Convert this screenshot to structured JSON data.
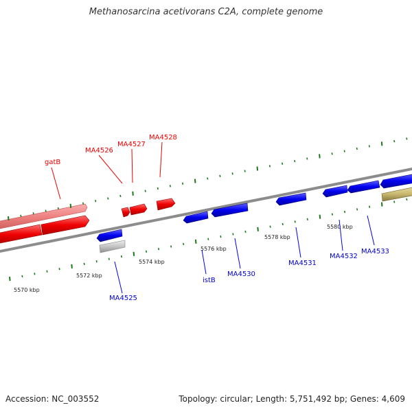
{
  "title": "Methanosarcina acetivorans C2A, complete genome",
  "footer": {
    "accession": "Accession: NC_003552",
    "stats": "Topology: circular; Length: 5,751,492 bp; Genes: 4,609"
  },
  "colors": {
    "forward_gene": "#ff0000",
    "forward_faded": "#f08080",
    "reverse_gene": "#0000ee",
    "grey_gene": "#c0c0c0",
    "olive_gene": "#c8b870",
    "backbone": "#8c8c8c",
    "tick": "#1a7a1a"
  },
  "scale_ticks": [
    {
      "label": "5570 kbp"
    },
    {
      "label": "5572 kbp"
    },
    {
      "label": "5574 kbp"
    },
    {
      "label": "5576 kbp"
    },
    {
      "label": "5578 kbp"
    },
    {
      "label": "5580 kbp"
    }
  ],
  "forward_labels": [
    {
      "label": "gatB"
    },
    {
      "label": "MA4526"
    },
    {
      "label": "MA4527"
    },
    {
      "label": "MA4528"
    }
  ],
  "reverse_labels": [
    {
      "label": "MA4525"
    },
    {
      "label": "istB"
    },
    {
      "label": "MA4530"
    },
    {
      "label": "MA4531"
    },
    {
      "label": "MA4532"
    },
    {
      "label": "MA4533"
    }
  ]
}
